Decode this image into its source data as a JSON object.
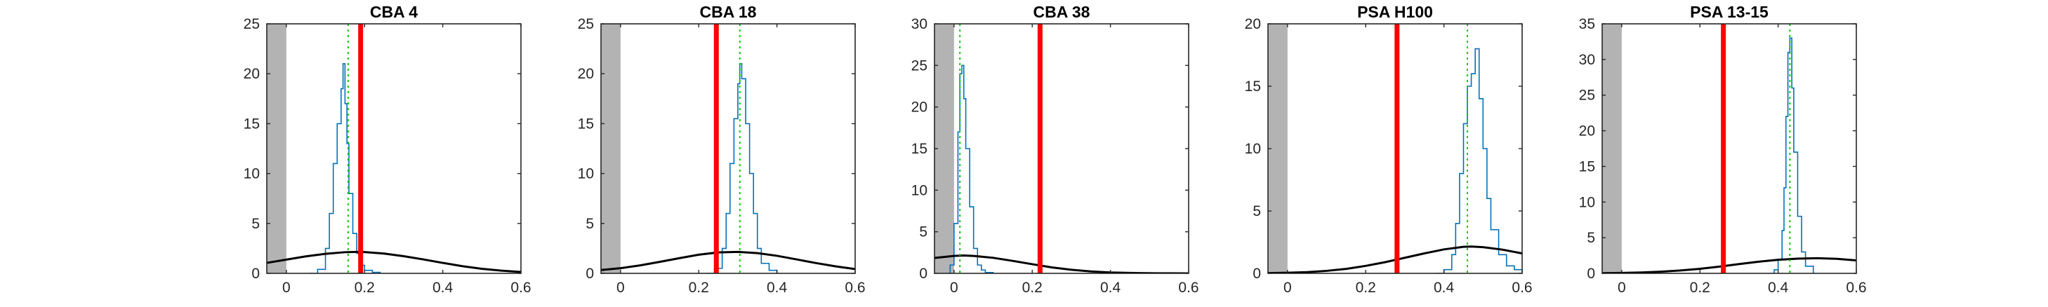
{
  "chart_data": [
    {
      "type": "line",
      "title": "CBA 4",
      "xlim": [
        -0.05,
        0.6
      ],
      "ylim": [
        0,
        25
      ],
      "xticks": [
        0,
        0.2,
        0.4,
        0.6
      ],
      "xtick_labels": [
        "0",
        "0.2",
        "0.4",
        "0.6"
      ],
      "yticks": [
        0,
        5,
        10,
        15,
        20,
        25
      ],
      "ytick_labels": [
        "0",
        "5",
        "10",
        "15",
        "20",
        "25"
      ],
      "shaded_region": [
        -0.05,
        0.0
      ],
      "red_line_x": 0.19,
      "green_dotted_x": 0.158,
      "series": [
        {
          "color": "#0072BD",
          "style": "histogram-stairs",
          "x": [
            0.06,
            0.08,
            0.1,
            0.11,
            0.12,
            0.13,
            0.14,
            0.145,
            0.15,
            0.155,
            0.16,
            0.17,
            0.18,
            0.19,
            0.2,
            0.22,
            0.24
          ],
          "y": [
            0,
            0.4,
            2.5,
            6,
            11,
            15,
            18.5,
            21,
            17,
            13,
            8,
            4,
            2,
            0.8,
            0.3,
            0.1,
            0
          ]
        },
        {
          "color": "#000000",
          "style": "curve",
          "x": [
            -0.05,
            0.0,
            0.05,
            0.1,
            0.15,
            0.18,
            0.2,
            0.25,
            0.3,
            0.35,
            0.4,
            0.45,
            0.5,
            0.55,
            0.6
          ],
          "y": [
            1.05,
            1.38,
            1.7,
            1.96,
            2.12,
            2.15,
            2.13,
            1.98,
            1.72,
            1.4,
            1.05,
            0.72,
            0.46,
            0.27,
            0.14
          ]
        }
      ]
    },
    {
      "type": "line",
      "title": "CBA 18",
      "xlim": [
        -0.05,
        0.6
      ],
      "ylim": [
        0,
        25
      ],
      "xticks": [
        0,
        0.2,
        0.4,
        0.6
      ],
      "xtick_labels": [
        "0",
        "0.2",
        "0.4",
        "0.6"
      ],
      "yticks": [
        0,
        5,
        10,
        15,
        20,
        25
      ],
      "ytick_labels": [
        "0",
        "5",
        "10",
        "15",
        "20",
        "25"
      ],
      "shaded_region": [
        -0.05,
        0.0
      ],
      "red_line_x": 0.245,
      "green_dotted_x": 0.305,
      "series": [
        {
          "color": "#0072BD",
          "style": "histogram-stairs",
          "x": [
            0.22,
            0.24,
            0.26,
            0.27,
            0.28,
            0.29,
            0.3,
            0.305,
            0.31,
            0.32,
            0.33,
            0.34,
            0.35,
            0.36,
            0.38,
            0.4
          ],
          "y": [
            0,
            0.5,
            2.5,
            6,
            11,
            15.5,
            19,
            21,
            19.5,
            15,
            10,
            6,
            2.5,
            1,
            0.3,
            0
          ]
        },
        {
          "color": "#000000",
          "style": "curve",
          "x": [
            -0.05,
            0.0,
            0.05,
            0.1,
            0.15,
            0.2,
            0.25,
            0.3,
            0.35,
            0.4,
            0.45,
            0.5,
            0.55,
            0.6
          ],
          "y": [
            0.33,
            0.52,
            0.8,
            1.15,
            1.52,
            1.87,
            2.1,
            2.15,
            2.03,
            1.76,
            1.4,
            1.03,
            0.7,
            0.43
          ]
        }
      ]
    },
    {
      "type": "line",
      "title": "CBA 38",
      "xlim": [
        -0.05,
        0.6
      ],
      "ylim": [
        0,
        30
      ],
      "xticks": [
        0,
        0.2,
        0.4,
        0.6
      ],
      "xtick_labels": [
        "0",
        "0.2",
        "0.4",
        "0.6"
      ],
      "yticks": [
        0,
        5,
        10,
        15,
        20,
        25,
        30
      ],
      "ytick_labels": [
        "0",
        "5",
        "10",
        "15",
        "20",
        "25",
        "30"
      ],
      "shaded_region": [
        -0.05,
        0.0
      ],
      "red_line_x": 0.22,
      "green_dotted_x": 0.015,
      "series": [
        {
          "color": "#0072BD",
          "style": "histogram-stairs",
          "x": [
            -0.02,
            -0.01,
            0.0,
            0.01,
            0.015,
            0.02,
            0.025,
            0.03,
            0.04,
            0.05,
            0.06,
            0.07,
            0.08,
            0.1
          ],
          "y": [
            0,
            1,
            6,
            17,
            24,
            25,
            21,
            15,
            8,
            3,
            1,
            0.4,
            0.1,
            0
          ]
        },
        {
          "color": "#000000",
          "style": "curve",
          "x": [
            -0.05,
            0.0,
            0.025,
            0.05,
            0.1,
            0.15,
            0.2,
            0.25,
            0.3,
            0.35,
            0.4,
            0.45,
            0.5,
            0.55,
            0.6
          ],
          "y": [
            1.85,
            2.1,
            2.15,
            2.1,
            1.87,
            1.5,
            1.1,
            0.72,
            0.43,
            0.23,
            0.11,
            0.05,
            0.02,
            0.01,
            0.0
          ]
        }
      ]
    },
    {
      "type": "line",
      "title": "PSA H100",
      "xlim": [
        -0.05,
        0.6
      ],
      "ylim": [
        0,
        20
      ],
      "xticks": [
        0,
        0.2,
        0.4,
        0.6
      ],
      "xtick_labels": [
        "0",
        "0.2",
        "0.4",
        "0.6"
      ],
      "yticks": [
        0,
        5,
        10,
        15,
        20
      ],
      "ytick_labels": [
        "0",
        "5",
        "10",
        "15",
        "20"
      ],
      "shaded_region": [
        -0.05,
        0.0
      ],
      "red_line_x": 0.28,
      "green_dotted_x": 0.46,
      "series": [
        {
          "color": "#0072BD",
          "style": "histogram-stairs",
          "x": [
            0.38,
            0.4,
            0.42,
            0.43,
            0.44,
            0.45,
            0.46,
            0.47,
            0.48,
            0.49,
            0.5,
            0.51,
            0.52,
            0.54,
            0.56,
            0.58,
            0.6
          ],
          "y": [
            0,
            0.3,
            1.5,
            4,
            8,
            12,
            15,
            16,
            18,
            14,
            10,
            6,
            3.5,
            1.5,
            0.6,
            0.3,
            0.1
          ]
        },
        {
          "color": "#000000",
          "style": "curve",
          "x": [
            -0.05,
            0.0,
            0.05,
            0.1,
            0.15,
            0.2,
            0.25,
            0.3,
            0.35,
            0.4,
            0.45,
            0.47,
            0.5,
            0.55,
            0.6
          ],
          "y": [
            0.02,
            0.05,
            0.1,
            0.2,
            0.36,
            0.6,
            0.9,
            1.25,
            1.6,
            1.92,
            2.13,
            2.15,
            2.1,
            1.9,
            1.6
          ]
        }
      ]
    },
    {
      "type": "line",
      "title": "PSA 13-15",
      "xlim": [
        -0.05,
        0.6
      ],
      "ylim": [
        0,
        35
      ],
      "xticks": [
        0,
        0.2,
        0.4,
        0.6
      ],
      "xtick_labels": [
        "0",
        "0.2",
        "0.4",
        "0.6"
      ],
      "yticks": [
        0,
        5,
        10,
        15,
        20,
        25,
        30,
        35
      ],
      "ytick_labels": [
        "0",
        "5",
        "10",
        "15",
        "20",
        "25",
        "30",
        "35"
      ],
      "shaded_region": [
        -0.05,
        0.0
      ],
      "red_line_x": 0.26,
      "green_dotted_x": 0.43,
      "series": [
        {
          "color": "#0072BD",
          "style": "histogram-stairs",
          "x": [
            0.38,
            0.39,
            0.4,
            0.41,
            0.415,
            0.42,
            0.425,
            0.43,
            0.435,
            0.44,
            0.45,
            0.46,
            0.47,
            0.49
          ],
          "y": [
            0,
            0.5,
            2,
            6,
            12,
            22,
            31,
            33,
            26,
            17,
            8,
            3,
            1,
            0
          ]
        },
        {
          "color": "#000000",
          "style": "curve",
          "x": [
            -0.05,
            0.0,
            0.05,
            0.1,
            0.15,
            0.2,
            0.25,
            0.3,
            0.35,
            0.4,
            0.45,
            0.5,
            0.55,
            0.6
          ],
          "y": [
            0.03,
            0.06,
            0.12,
            0.23,
            0.4,
            0.64,
            0.95,
            1.3,
            1.63,
            1.9,
            2.07,
            2.13,
            2.04,
            1.82
          ]
        }
      ]
    }
  ],
  "colors": {
    "axis": "#262626",
    "shaded": "#b3b3b3",
    "red_line": "#ff0000",
    "green_dotted": "#00cc00",
    "histogram": "#0072BD",
    "curve": "#000000"
  }
}
